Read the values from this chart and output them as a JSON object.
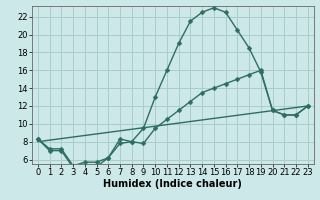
{
  "title": "",
  "xlabel": "Humidex (Indice chaleur)",
  "ylabel": "",
  "bg_color": "#cce8e8",
  "line_color": "#2d6e63",
  "grid_color": "#aacccc",
  "ylim": [
    5.5,
    23.2
  ],
  "xlim": [
    -0.5,
    23.5
  ],
  "yticks": [
    6,
    8,
    10,
    12,
    14,
    16,
    18,
    20,
    22
  ],
  "xticks": [
    0,
    1,
    2,
    3,
    4,
    5,
    6,
    7,
    8,
    9,
    10,
    11,
    12,
    13,
    14,
    15,
    16,
    17,
    18,
    19,
    20,
    21,
    22,
    23
  ],
  "series1_x": [
    0,
    1,
    2,
    3,
    4,
    5,
    6,
    7,
    8,
    9,
    10,
    11,
    12,
    13,
    14,
    15,
    16,
    17,
    18,
    19,
    20,
    21,
    22,
    23
  ],
  "series1_y": [
    8.3,
    7.0,
    7.0,
    5.1,
    5.2,
    5.2,
    6.2,
    8.3,
    8.0,
    9.5,
    13.0,
    16.0,
    19.0,
    21.5,
    22.5,
    23.0,
    22.5,
    20.5,
    18.5,
    15.8,
    11.5,
    11.0,
    11.0,
    12.0
  ],
  "series2_x": [
    0,
    1,
    2,
    3,
    4,
    5,
    6,
    7,
    8,
    9,
    10,
    11,
    12,
    13,
    14,
    15,
    16,
    17,
    18,
    19,
    20,
    21,
    22,
    23
  ],
  "series2_y": [
    8.3,
    7.2,
    7.2,
    5.3,
    5.7,
    5.7,
    6.2,
    7.8,
    8.0,
    7.8,
    9.5,
    10.5,
    11.5,
    12.5,
    13.5,
    14.0,
    14.5,
    15.0,
    15.5,
    16.0,
    11.5,
    11.0,
    11.0,
    12.0
  ],
  "series3_x": [
    0,
    23
  ],
  "series3_y": [
    8.0,
    12.0
  ],
  "marker_size": 2.5,
  "line_width": 1.0,
  "xlabel_fontsize": 7,
  "tick_fontsize": 6
}
